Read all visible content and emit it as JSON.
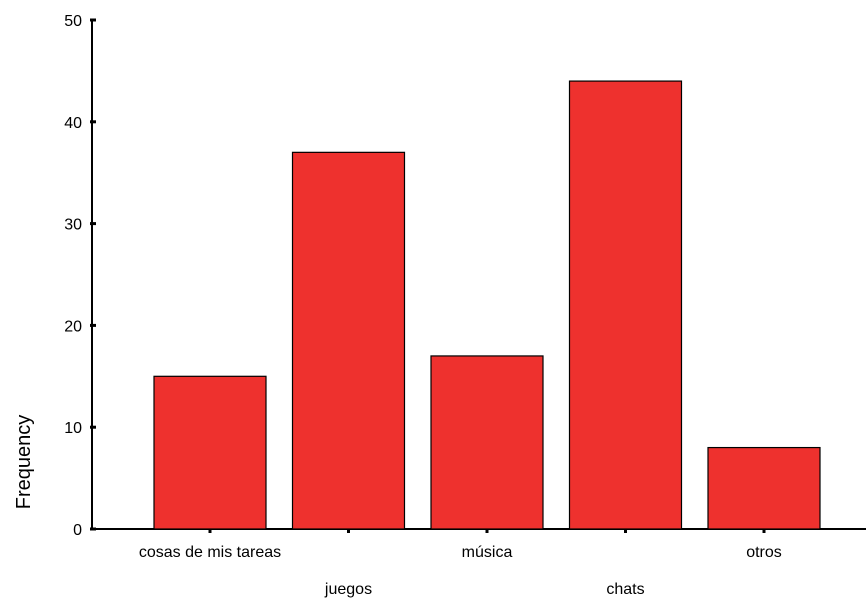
{
  "chart_data": {
    "type": "bar",
    "categories": [
      "cosas de mis tareas",
      "juegos",
      "música",
      "chats",
      "otros"
    ],
    "values": [
      15,
      37,
      17,
      44,
      8
    ],
    "title": "",
    "xlabel": "",
    "ylabel": "Frequency",
    "ylim": [
      0,
      50
    ],
    "yticks": [
      0,
      10,
      20,
      30,
      40,
      50
    ],
    "grid": false,
    "bar_color": "#ee312e",
    "bar_edge_color": "#000000"
  }
}
